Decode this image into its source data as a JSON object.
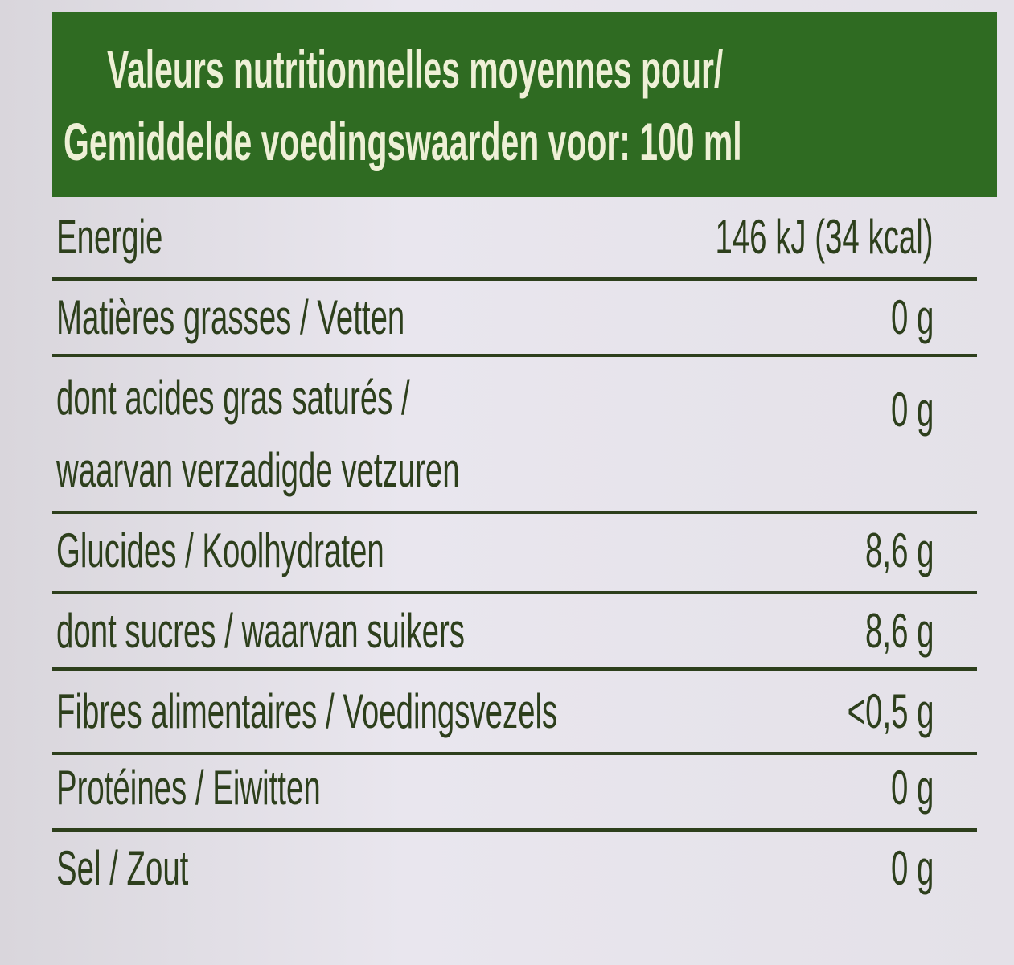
{
  "header": {
    "lines": [
      "Valeurs nutritionnelles moyennes pour/",
      "Gemiddelde voedingswaarden voor: 100 ml"
    ]
  },
  "table": {
    "rows": [
      {
        "label": [
          "Energie"
        ],
        "value": "146 kJ (34 kcal)"
      },
      {
        "label": [
          "Matières grasses / Vetten"
        ],
        "value": "0 g"
      },
      {
        "label": [
          "dont acides gras saturés /",
          "waarvan verzadigde vetzuren"
        ],
        "value": "0 g"
      },
      {
        "label": [
          "Glucides / Koolhydraten"
        ],
        "value": "8,6 g"
      },
      {
        "label": [
          "dont sucres / waarvan suikers"
        ],
        "value": "8,6 g"
      },
      {
        "label": [
          "Fibres alimentaires / Voedingsvezels"
        ],
        "value": "<0,5 g"
      },
      {
        "label": [
          "Protéines / Eiwitten"
        ],
        "value": "0 g"
      },
      {
        "label": [
          "Sel / Zout"
        ],
        "value": "0 g"
      }
    ]
  }
}
